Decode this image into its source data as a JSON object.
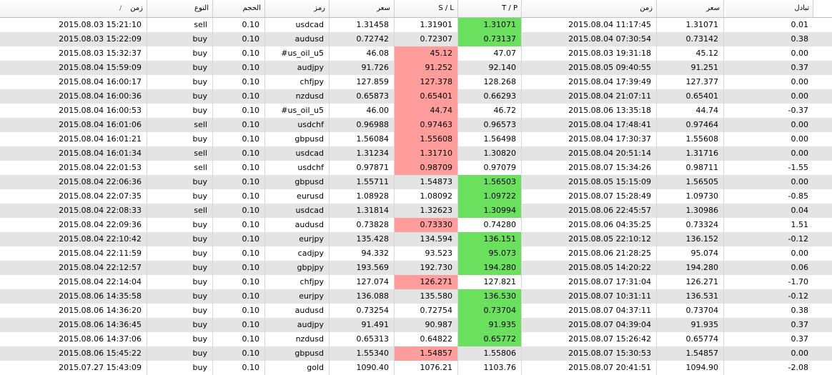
{
  "headers": {
    "time": "زمن",
    "type": "النوع",
    "volume": "الحجم",
    "symbol": "رمز",
    "price": "سعر",
    "sl": "S / L",
    "tp": "T / P",
    "close_time": "زمن",
    "close_price": "سعر",
    "swap": "تبادل",
    "sort_indicator": "/"
  },
  "colors": {
    "sl_hit": "#ff9d9d",
    "tp_hit": "#6ae05e",
    "row_alt": "#e4e4e4"
  },
  "rows": [
    {
      "time": "2015.08.03 15:21:10",
      "type": "sell",
      "volume": "0.10",
      "symbol": "usdcad",
      "price": "1.31458",
      "sl": "1.31901",
      "tp": "1.31071",
      "close_time": "2015.08.04 11:17:45",
      "close_price": "1.31071",
      "swap": "0.01",
      "hit": "tp"
    },
    {
      "time": "2015.08.03 15:22:09",
      "type": "buy",
      "volume": "0.10",
      "symbol": "audusd",
      "price": "0.72742",
      "sl": "0.72307",
      "tp": "0.73137",
      "close_time": "2015.08.04 07:30:54",
      "close_price": "0.73142",
      "swap": "0.38",
      "hit": "tp"
    },
    {
      "time": "2015.08.03 15:32:37",
      "type": "buy",
      "volume": "0.10",
      "symbol": "#us_oil_u5",
      "price": "46.08",
      "sl": "45.12",
      "tp": "47.07",
      "close_time": "2015.08.03 19:31:18",
      "close_price": "45.12",
      "swap": "0.00",
      "hit": "sl"
    },
    {
      "time": "2015.08.04 15:59:09",
      "type": "buy",
      "volume": "0.10",
      "symbol": "audjpy",
      "price": "91.726",
      "sl": "91.252",
      "tp": "92.140",
      "close_time": "2015.08.05 09:40:55",
      "close_price": "91.251",
      "swap": "0.37",
      "hit": "sl"
    },
    {
      "time": "2015.08.04 16:00:17",
      "type": "buy",
      "volume": "0.10",
      "symbol": "chfjpy",
      "price": "127.859",
      "sl": "127.378",
      "tp": "128.268",
      "close_time": "2015.08.04 17:39:49",
      "close_price": "127.377",
      "swap": "0.00",
      "hit": "sl"
    },
    {
      "time": "2015.08.04 16:00:36",
      "type": "buy",
      "volume": "0.10",
      "symbol": "nzdusd",
      "price": "0.65873",
      "sl": "0.65401",
      "tp": "0.66293",
      "close_time": "2015.08.04 21:07:11",
      "close_price": "0.65401",
      "swap": "0.00",
      "hit": "sl"
    },
    {
      "time": "2015.08.04 16:00:53",
      "type": "buy",
      "volume": "0.10",
      "symbol": "#us_oil_u5",
      "price": "46.00",
      "sl": "44.74",
      "tp": "46.72",
      "close_time": "2015.08.06 13:35:18",
      "close_price": "44.74",
      "swap": "-0.37",
      "hit": "sl"
    },
    {
      "time": "2015.08.04 16:01:06",
      "type": "sell",
      "volume": "0.10",
      "symbol": "usdchf",
      "price": "0.96988",
      "sl": "0.97463",
      "tp": "0.96573",
      "close_time": "2015.08.04 17:48:41",
      "close_price": "0.97464",
      "swap": "0.00",
      "hit": "sl"
    },
    {
      "time": "2015.08.04 16:01:21",
      "type": "buy",
      "volume": "0.10",
      "symbol": "gbpusd",
      "price": "1.56084",
      "sl": "1.55608",
      "tp": "1.56498",
      "close_time": "2015.08.04 17:30:37",
      "close_price": "1.55608",
      "swap": "0.00",
      "hit": "sl"
    },
    {
      "time": "2015.08.04 16:01:34",
      "type": "sell",
      "volume": "0.10",
      "symbol": "usdcad",
      "price": "1.31234",
      "sl": "1.31710",
      "tp": "1.30820",
      "close_time": "2015.08.04 20:51:14",
      "close_price": "1.31716",
      "swap": "0.00",
      "hit": "sl"
    },
    {
      "time": "2015.08.04 22:01:53",
      "type": "sell",
      "volume": "0.10",
      "symbol": "usdchf",
      "price": "0.97871",
      "sl": "0.98709",
      "tp": "0.97079",
      "close_time": "2015.08.07 15:34:26",
      "close_price": "0.98711",
      "swap": "-1.55",
      "hit": "sl"
    },
    {
      "time": "2015.08.04 22:06:36",
      "type": "buy",
      "volume": "0.10",
      "symbol": "gbpusd",
      "price": "1.55711",
      "sl": "1.54873",
      "tp": "1.56503",
      "close_time": "2015.08.05 15:15:09",
      "close_price": "1.56505",
      "swap": "0.00",
      "hit": "tp"
    },
    {
      "time": "2015.08.04 22:07:35",
      "type": "buy",
      "volume": "0.10",
      "symbol": "eurusd",
      "price": "1.08928",
      "sl": "1.08092",
      "tp": "1.09722",
      "close_time": "2015.08.07 15:28:49",
      "close_price": "1.09730",
      "swap": "-0.85",
      "hit": "tp"
    },
    {
      "time": "2015.08.04 22:08:33",
      "type": "sell",
      "volume": "0.10",
      "symbol": "usdcad",
      "price": "1.31814",
      "sl": "1.32623",
      "tp": "1.30994",
      "close_time": "2015.08.06 22:45:57",
      "close_price": "1.30986",
      "swap": "0.04",
      "hit": "tp"
    },
    {
      "time": "2015.08.04 22:09:36",
      "type": "buy",
      "volume": "0.10",
      "symbol": "audusd",
      "price": "0.73828",
      "sl": "0.73330",
      "tp": "0.74280",
      "close_time": "2015.08.06 04:35:25",
      "close_price": "0.73324",
      "swap": "1.51",
      "hit": "sl"
    },
    {
      "time": "2015.08.04 22:10:42",
      "type": "buy",
      "volume": "0.10",
      "symbol": "eurjpy",
      "price": "135.428",
      "sl": "134.594",
      "tp": "136.151",
      "close_time": "2015.08.05 22:10:12",
      "close_price": "136.152",
      "swap": "-0.12",
      "hit": "tp"
    },
    {
      "time": "2015.08.04 22:11:59",
      "type": "buy",
      "volume": "0.10",
      "symbol": "cadjpy",
      "price": "94.332",
      "sl": "93.523",
      "tp": "95.073",
      "close_time": "2015.08.06 21:28:25",
      "close_price": "95.074",
      "swap": "0.00",
      "hit": "tp"
    },
    {
      "time": "2015.08.04 22:12:57",
      "type": "buy",
      "volume": "0.10",
      "symbol": "gbpjpy",
      "price": "193.569",
      "sl": "192.730",
      "tp": "194.280",
      "close_time": "2015.08.05 14:20:22",
      "close_price": "194.280",
      "swap": "0.06",
      "hit": "tp"
    },
    {
      "time": "2015.08.04 22:14:04",
      "type": "buy",
      "volume": "0.10",
      "symbol": "chfjpy",
      "price": "127.074",
      "sl": "126.271",
      "tp": "127.821",
      "close_time": "2015.08.07 17:31:04",
      "close_price": "126.271",
      "swap": "-1.70",
      "hit": "sl"
    },
    {
      "time": "2015.08.06 14:35:58",
      "type": "buy",
      "volume": "0.10",
      "symbol": "eurjpy",
      "price": "136.088",
      "sl": "135.580",
      "tp": "136.530",
      "close_time": "2015.08.07 10:31:11",
      "close_price": "136.531",
      "swap": "-0.12",
      "hit": "tp"
    },
    {
      "time": "2015.08.06 14:36:20",
      "type": "buy",
      "volume": "0.10",
      "symbol": "audusd",
      "price": "0.73254",
      "sl": "0.72754",
      "tp": "0.73704",
      "close_time": "2015.08.07 04:37:11",
      "close_price": "0.73704",
      "swap": "0.38",
      "hit": "tp"
    },
    {
      "time": "2015.08.06 14:36:45",
      "type": "buy",
      "volume": "0.10",
      "symbol": "audjpy",
      "price": "91.491",
      "sl": "90.987",
      "tp": "91.935",
      "close_time": "2015.08.07 04:39:04",
      "close_price": "91.935",
      "swap": "0.37",
      "hit": "tp"
    },
    {
      "time": "2015.08.06 14:37:06",
      "type": "buy",
      "volume": "0.10",
      "symbol": "nzdusd",
      "price": "0.65313",
      "sl": "0.64822",
      "tp": "0.65772",
      "close_time": "2015.08.07 15:26:42",
      "close_price": "0.65774",
      "swap": "0.37",
      "hit": "tp"
    },
    {
      "time": "2015.08.06 15:45:22",
      "type": "buy",
      "volume": "0.10",
      "symbol": "gbpusd",
      "price": "1.55340",
      "sl": "1.54857",
      "tp": "1.55806",
      "close_time": "2015.08.07 15:30:53",
      "close_price": "1.54857",
      "swap": "0.00",
      "hit": "sl"
    },
    {
      "time": "2015.07.27 15:43:09",
      "type": "buy",
      "volume": "0.10",
      "symbol": "gold",
      "price": "1090.40",
      "sl": "1076.21",
      "tp": "1103.76",
      "close_time": "2015.08.07 20:41:51",
      "close_price": "1094.90",
      "swap": "-2.08",
      "hit": "none"
    }
  ]
}
